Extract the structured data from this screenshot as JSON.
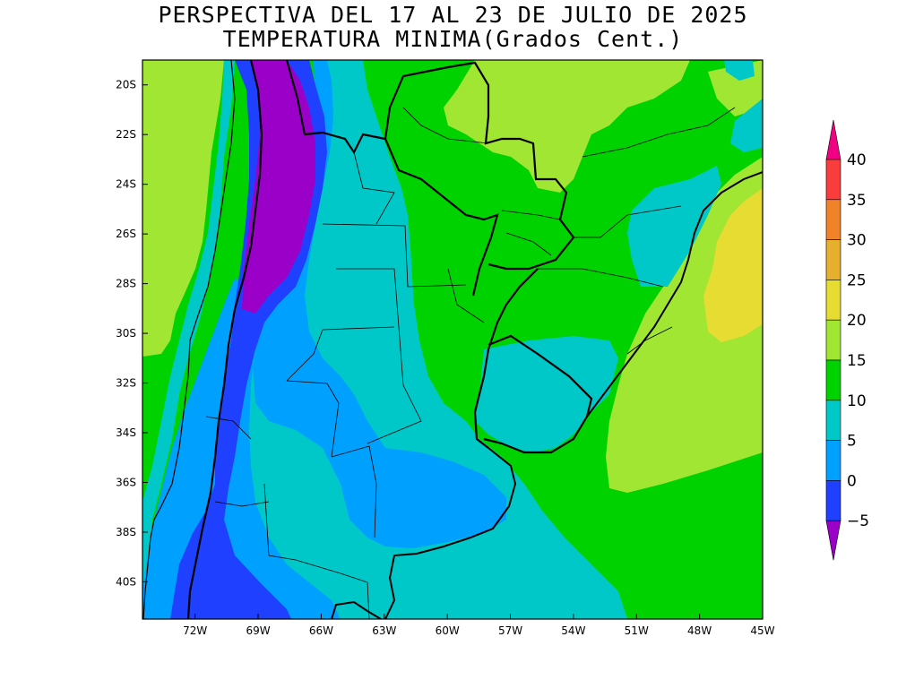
{
  "title": {
    "line1": "PERSPECTIVA DEL 17 AL 23 DE JULIO DE 2025",
    "line2": "TEMPERATURA MINIMA(Grados Cent.)"
  },
  "map": {
    "lon_range": [
      -74.5,
      -45
    ],
    "lat_range": [
      -41.5,
      -19
    ]
  },
  "axes": {
    "x_ticks": [
      "72W",
      "69W",
      "66W",
      "63W",
      "60W",
      "57W",
      "54W",
      "51W",
      "48W",
      "45W"
    ],
    "y_ticks": [
      "20S",
      "22S",
      "24S",
      "26S",
      "28S",
      "30S",
      "32S",
      "34S",
      "36S",
      "38S",
      "40S"
    ]
  },
  "colorbar": {
    "labels": [
      "40",
      "35",
      "30",
      "25",
      "20",
      "15",
      "10",
      "5",
      "0",
      "−5"
    ],
    "colors": {
      "below_-5": "#9b00c8",
      "-5_0": "#2040ff",
      "0_5": "#00a0ff",
      "5_10": "#00c8c8",
      "10_15": "#00d200",
      "15_20": "#a0e632",
      "20_25": "#e6dc32",
      "25_30": "#e6af2d",
      "30_35": "#f08228",
      "35_40": "#fa3c3c",
      "above_40": "#f00082"
    }
  }
}
